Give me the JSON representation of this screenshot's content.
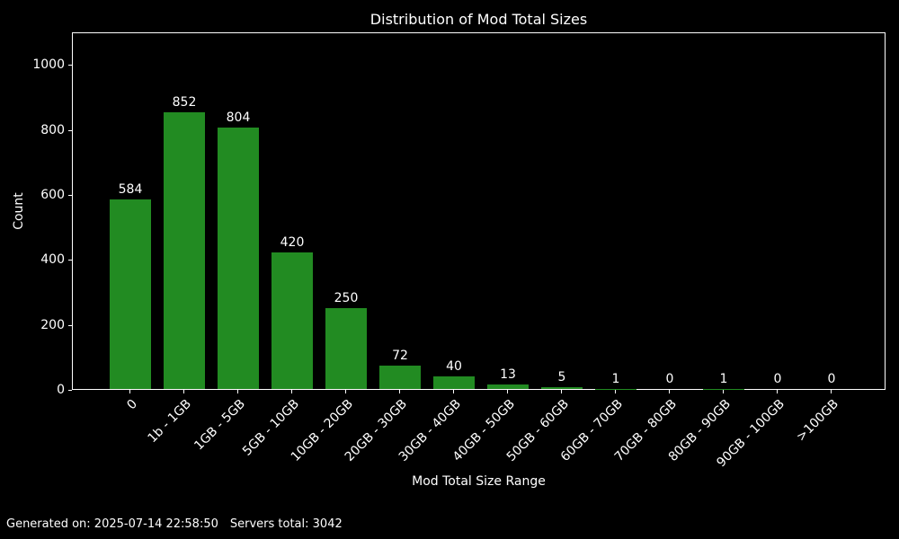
{
  "title": "Distribution of Mod Total Sizes",
  "footer": {
    "generated": "Generated on: 2025-07-14 22:58:50",
    "servers": "Servers total: 3042"
  },
  "chart_data": {
    "type": "bar",
    "title": "Distribution of Mod Total Sizes",
    "xlabel": "Mod Total Size Range",
    "ylabel": "Count",
    "categories": [
      "0",
      "1b - 1GB",
      "1GB - 5GB",
      "5GB - 10GB",
      "10GB - 20GB",
      "20GB - 30GB",
      "30GB - 40GB",
      "40GB - 50GB",
      "50GB - 60GB",
      "60GB - 70GB",
      "70GB - 80GB",
      "80GB - 90GB",
      "90GB - 100GB",
      ">100GB"
    ],
    "values": [
      584,
      852,
      804,
      420,
      250,
      72,
      40,
      13,
      5,
      1,
      0,
      1,
      0,
      0
    ],
    "value_labels_shown": true,
    "yticks": [
      0,
      200,
      400,
      600,
      800,
      1000
    ],
    "ylim": [
      0,
      1100
    ],
    "xtick_rotation_deg": 45,
    "grid": false,
    "legend": null,
    "colors": {
      "background": "#000000",
      "bar": "#228B22",
      "text": "#ffffff",
      "spine": "#ffffff"
    }
  }
}
